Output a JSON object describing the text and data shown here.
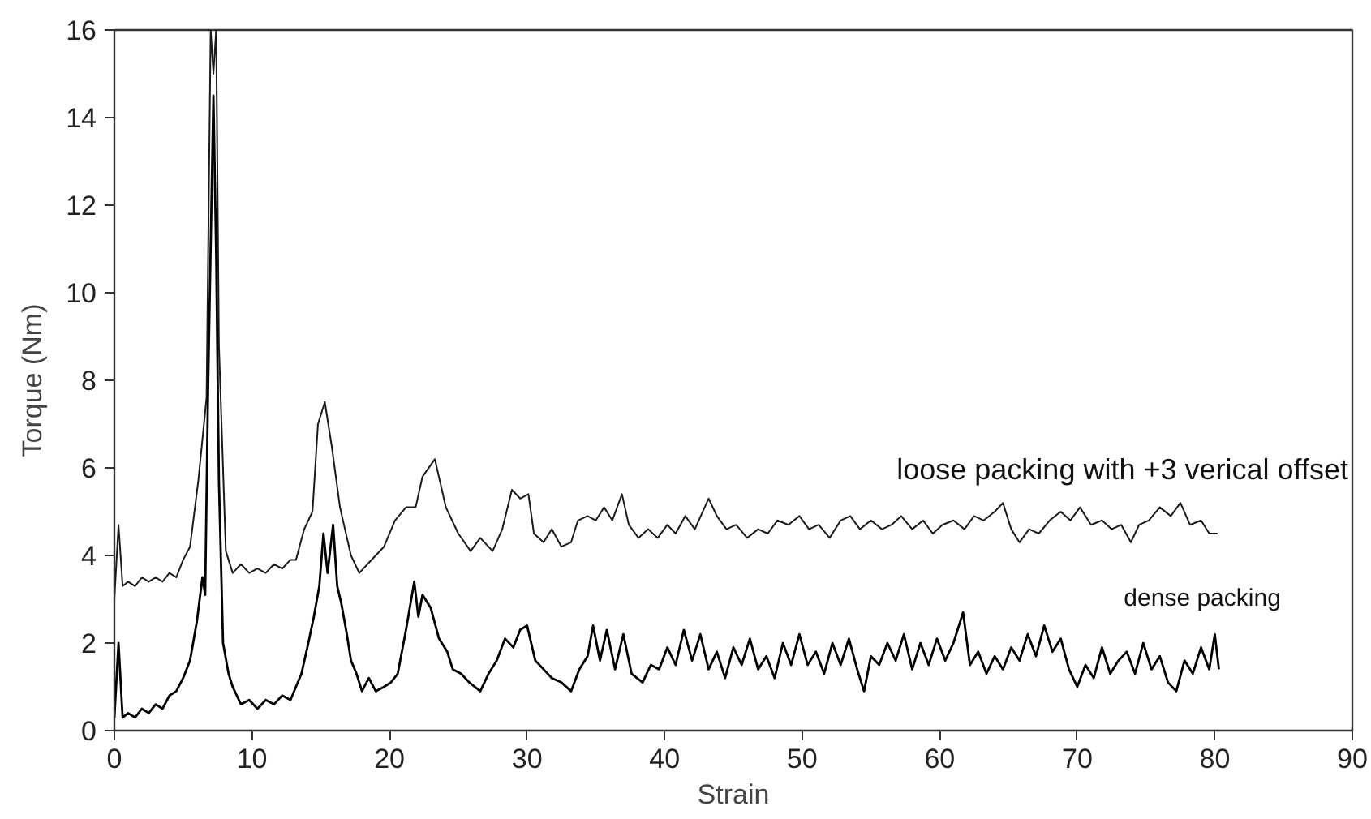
{
  "chart_data": {
    "type": "line",
    "xlabel": "Strain",
    "ylabel": "Torque (Nm)",
    "xlim": [
      0,
      90
    ],
    "ylim": [
      0,
      16
    ],
    "xticks": [
      0,
      10,
      20,
      30,
      40,
      50,
      60,
      70,
      80,
      90
    ],
    "yticks": [
      0,
      2,
      4,
      6,
      8,
      10,
      12,
      14,
      16
    ],
    "grid": false,
    "legend": false,
    "marker": "none",
    "line_style": "solid",
    "series": [
      {
        "name": "loose packing with +3 verical offset",
        "color": "#1a1a1a",
        "x": [
          0,
          0.3,
          0.6,
          1,
          1.5,
          2,
          2.5,
          3,
          3.5,
          4,
          4.5,
          5,
          5.5,
          6.1,
          6.7,
          7.0,
          7.2,
          7.4,
          7.6,
          8.1,
          8.6,
          9.2,
          9.8,
          10.4,
          11,
          11.6,
          12.2,
          12.8,
          13.2,
          13.8,
          14.4,
          14.8,
          15.3,
          15.8,
          16.4,
          17.2,
          17.8,
          18.4,
          19,
          19.6,
          20.4,
          21.2,
          21.9,
          22.4,
          23.3,
          24.1,
          25,
          25.9,
          26.6,
          27.5,
          28.2,
          28.9,
          29.5,
          30.1,
          30.5,
          31.2,
          31.8,
          32.5,
          33.2,
          33.7,
          34.4,
          35,
          35.6,
          36.2,
          36.9,
          37.4,
          38.1,
          38.8,
          39.5,
          40.2,
          40.8,
          41.5,
          42.2,
          43.2,
          43.8,
          44.5,
          45.2,
          46,
          46.8,
          47.5,
          48.2,
          49,
          49.8,
          50.5,
          51.2,
          52,
          52.8,
          53.5,
          54.2,
          55,
          55.8,
          56.5,
          57.2,
          58,
          58.8,
          59.5,
          60.2,
          61,
          61.8,
          62.5,
          63.2,
          64,
          64.6,
          65.2,
          65.8,
          66.5,
          67.2,
          68,
          68.8,
          69.5,
          70.2,
          71,
          71.8,
          72.5,
          73.2,
          73.9,
          74.5,
          75.2,
          76,
          76.8,
          77.5,
          78.2,
          79,
          79.6,
          80.2
        ],
        "values": [
          3.0,
          4.7,
          3.3,
          3.4,
          3.3,
          3.5,
          3.4,
          3.5,
          3.4,
          3.6,
          3.5,
          3.9,
          4.2,
          5.7,
          7.6,
          16,
          15.0,
          16,
          8.8,
          4.1,
          3.6,
          3.8,
          3.6,
          3.7,
          3.6,
          3.8,
          3.7,
          3.9,
          3.9,
          4.6,
          5.0,
          7.0,
          7.5,
          6.5,
          5.1,
          4.0,
          3.6,
          3.8,
          4.0,
          4.2,
          4.8,
          5.1,
          5.1,
          5.8,
          6.2,
          5.1,
          4.5,
          4.1,
          4.4,
          4.1,
          4.6,
          5.5,
          5.3,
          5.4,
          4.5,
          4.3,
          4.6,
          4.2,
          4.3,
          4.8,
          4.9,
          4.8,
          5.1,
          4.8,
          5.4,
          4.7,
          4.4,
          4.6,
          4.4,
          4.7,
          4.5,
          4.9,
          4.6,
          5.3,
          4.9,
          4.6,
          4.7,
          4.4,
          4.6,
          4.5,
          4.8,
          4.7,
          4.9,
          4.6,
          4.7,
          4.4,
          4.8,
          4.9,
          4.6,
          4.8,
          4.6,
          4.7,
          4.9,
          4.6,
          4.8,
          4.5,
          4.7,
          4.8,
          4.6,
          4.9,
          4.8,
          5.0,
          5.2,
          4.6,
          4.3,
          4.6,
          4.5,
          4.8,
          5.0,
          4.8,
          5.1,
          4.7,
          4.8,
          4.6,
          4.7,
          4.3,
          4.7,
          4.8,
          5.1,
          4.9,
          5.2,
          4.7,
          4.8,
          4.5,
          4.5
        ]
      },
      {
        "name": "dense packing",
        "color": "#000000",
        "x": [
          0,
          0.3,
          0.6,
          1,
          1.5,
          2,
          2.5,
          3,
          3.5,
          4,
          4.5,
          5,
          5.5,
          6,
          6.4,
          6.6,
          6.8,
          7.2,
          7.4,
          7.6,
          7.9,
          8.3,
          8.6,
          9.2,
          9.8,
          10.4,
          11,
          11.6,
          12.2,
          12.8,
          13.2,
          13.6,
          14.1,
          14.5,
          14.9,
          15.2,
          15.5,
          15.9,
          16.2,
          16.5,
          16.9,
          17.2,
          17.6,
          18.0,
          18.5,
          19,
          19.6,
          20.1,
          20.6,
          21.2,
          21.8,
          22.1,
          22.4,
          23,
          23.6,
          24.2,
          24.6,
          25.2,
          25.8,
          26.6,
          27.2,
          27.8,
          28.4,
          29,
          29.5,
          30,
          30.6,
          31.2,
          31.8,
          32.5,
          33.2,
          33.8,
          34.4,
          34.8,
          35.3,
          35.8,
          36.4,
          37,
          37.6,
          38.4,
          39,
          39.6,
          40.2,
          40.8,
          41.4,
          42,
          42.6,
          43.2,
          43.8,
          44.4,
          45,
          45.6,
          46.2,
          46.8,
          47.4,
          48,
          48.6,
          49.2,
          49.8,
          50.4,
          51,
          51.6,
          52.2,
          52.8,
          53.4,
          54,
          54.5,
          55,
          55.6,
          56.2,
          56.8,
          57.4,
          58,
          58.6,
          59.2,
          59.8,
          60.4,
          61,
          61.7,
          62.2,
          62.8,
          63.4,
          64,
          64.6,
          65.2,
          65.8,
          66.4,
          67,
          67.6,
          68.2,
          68.8,
          69.4,
          70,
          70.6,
          71.2,
          71.8,
          72.4,
          73,
          73.6,
          74.2,
          74.8,
          75.4,
          76,
          76.6,
          77.2,
          77.8,
          78.4,
          79,
          79.6,
          80,
          80.3
        ],
        "values": [
          0.3,
          2.0,
          0.3,
          0.4,
          0.3,
          0.5,
          0.4,
          0.6,
          0.5,
          0.8,
          0.9,
          1.2,
          1.6,
          2.5,
          3.5,
          3.1,
          7.6,
          14.5,
          10.9,
          5.7,
          2.0,
          1.3,
          1.0,
          0.6,
          0.7,
          0.5,
          0.7,
          0.6,
          0.8,
          0.7,
          1.0,
          1.3,
          2.0,
          2.6,
          3.3,
          4.5,
          3.6,
          4.7,
          3.3,
          2.9,
          2.2,
          1.6,
          1.3,
          0.9,
          1.2,
          0.9,
          1.0,
          1.1,
          1.3,
          2.3,
          3.4,
          2.6,
          3.1,
          2.8,
          2.1,
          1.8,
          1.4,
          1.3,
          1.1,
          0.9,
          1.3,
          1.6,
          2.1,
          1.9,
          2.3,
          2.4,
          1.6,
          1.4,
          1.2,
          1.1,
          0.9,
          1.4,
          1.7,
          2.4,
          1.6,
          2.3,
          1.4,
          2.2,
          1.3,
          1.1,
          1.5,
          1.4,
          1.9,
          1.5,
          2.3,
          1.6,
          2.2,
          1.4,
          1.8,
          1.2,
          1.9,
          1.5,
          2.1,
          1.4,
          1.7,
          1.2,
          2.0,
          1.5,
          2.2,
          1.5,
          1.8,
          1.3,
          2.0,
          1.5,
          2.1,
          1.4,
          0.9,
          1.7,
          1.5,
          2.0,
          1.6,
          2.2,
          1.4,
          2.0,
          1.5,
          2.1,
          1.6,
          2.0,
          2.7,
          1.5,
          1.8,
          1.3,
          1.7,
          1.4,
          1.9,
          1.6,
          2.2,
          1.7,
          2.4,
          1.8,
          2.1,
          1.4,
          1.0,
          1.5,
          1.2,
          1.9,
          1.3,
          1.6,
          1.8,
          1.3,
          2.0,
          1.4,
          1.7,
          1.1,
          0.9,
          1.6,
          1.3,
          1.9,
          1.4,
          2.2,
          1.4
        ]
      }
    ]
  }
}
